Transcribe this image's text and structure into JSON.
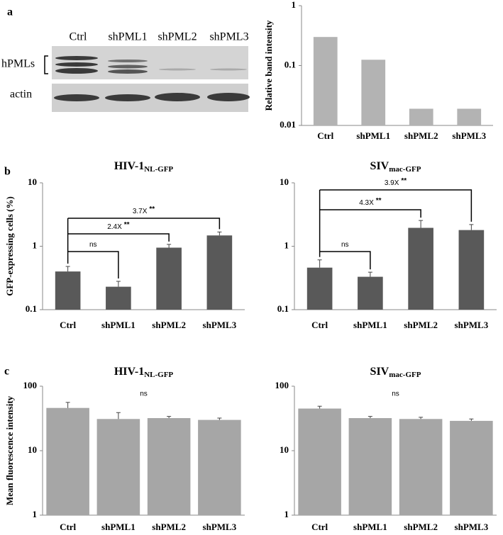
{
  "panel_labels": [
    "a",
    "b",
    "c"
  ],
  "blot": {
    "lanes": [
      "Ctrl",
      "shPML1",
      "shPML2",
      "shPML3"
    ],
    "rows": [
      "hPMLs",
      "actin"
    ]
  },
  "chart_data": [
    {
      "type": "bar",
      "y_label": "Relative band intensity",
      "categories": [
        "Ctrl",
        "shPML1",
        "shPML2",
        "shPML3"
      ],
      "values": [
        0.3,
        0.125,
        0.019,
        0.019
      ],
      "color": "#b3b3b3",
      "log_y": true,
      "ylim": [
        0.01,
        1
      ],
      "yticks": [
        0.01,
        0.1,
        1
      ]
    },
    {
      "type": "bar",
      "title": "HIV-1",
      "title_sub": "NL-GFP",
      "y_label": "GFP-expressing cells (%)",
      "categories": [
        "Ctrl",
        "shPML1",
        "shPML2",
        "shPML3"
      ],
      "values": [
        0.4,
        0.23,
        0.95,
        1.48
      ],
      "errors": [
        0.08,
        0.05,
        0.12,
        0.2
      ],
      "color": "#595959",
      "log_y": true,
      "ylim": [
        0.1,
        10
      ],
      "yticks": [
        0.1,
        1,
        10
      ],
      "annotations": [
        {
          "text": "ns"
        },
        {
          "text": "2.4X",
          "stars": "**"
        },
        {
          "text": "3.7X",
          "stars": "**"
        }
      ]
    },
    {
      "type": "bar",
      "title": "SIV",
      "title_sub": "mac-GFP",
      "categories": [
        "Ctrl",
        "shPML1",
        "shPML2",
        "shPML3"
      ],
      "values": [
        0.46,
        0.33,
        1.95,
        1.8
      ],
      "errors": [
        0.15,
        0.06,
        0.6,
        0.4
      ],
      "color": "#595959",
      "log_y": true,
      "ylim": [
        0.1,
        10
      ],
      "yticks": [
        0.1,
        1,
        10
      ],
      "annotations": [
        {
          "text": "ns"
        },
        {
          "text": "4.3X",
          "stars": "**"
        },
        {
          "text": "3.9X",
          "stars": "**"
        }
      ]
    },
    {
      "type": "bar",
      "title": "HIV-1",
      "title_sub": "NL-GFP",
      "y_label": "Mean fluorescence intensity",
      "categories": [
        "Ctrl",
        "shPML1",
        "shPML2",
        "shPML3"
      ],
      "values": [
        46,
        31,
        32,
        30
      ],
      "errors": [
        10,
        8,
        2,
        2
      ],
      "color": "#a6a6a6",
      "log_y": true,
      "ylim": [
        1,
        100
      ],
      "yticks": [
        1,
        10,
        100
      ],
      "annotations": [
        {
          "text": "ns"
        }
      ]
    },
    {
      "type": "bar",
      "title": "SIV",
      "title_sub": "mac-GFP",
      "categories": [
        "Ctrl",
        "shPML1",
        "shPML2",
        "shPML3"
      ],
      "values": [
        45,
        32,
        31,
        29
      ],
      "errors": [
        4,
        2,
        2,
        2
      ],
      "color": "#a6a6a6",
      "log_y": true,
      "ylim": [
        1,
        100
      ],
      "yticks": [
        1,
        10,
        100
      ],
      "annotations": [
        {
          "text": "ns"
        }
      ]
    }
  ]
}
